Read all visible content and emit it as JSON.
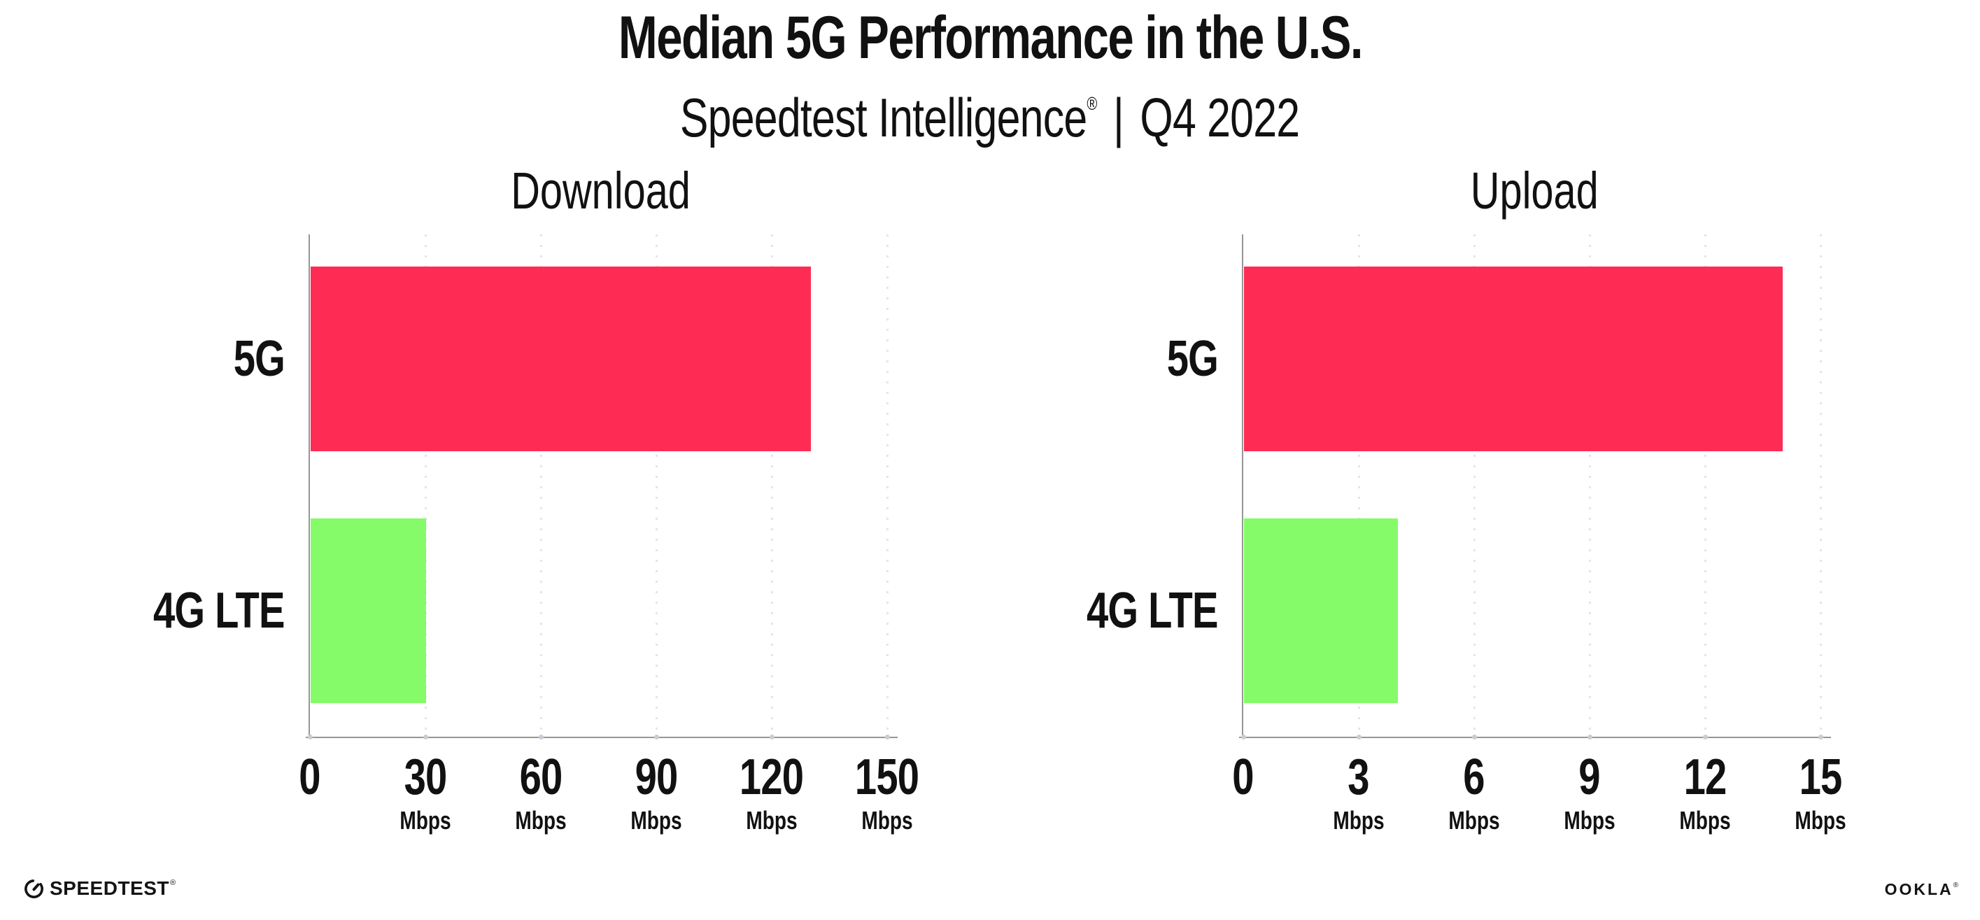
{
  "header": {
    "title": "Median 5G Performance in the U.S.",
    "subtitle_brand": "Speedtest Intelligence",
    "subtitle_reg": "®",
    "subtitle_sep": "|",
    "subtitle_period": "Q4 2022"
  },
  "chart_data": [
    {
      "type": "bar",
      "orientation": "horizontal",
      "title": "Download",
      "categories": [
        "5G",
        "4G LTE"
      ],
      "values": [
        130,
        30
      ],
      "unit": "Mbps",
      "xlim": [
        0,
        150
      ],
      "xticks": [
        0,
        30,
        60,
        90,
        120,
        150
      ],
      "bar_colors": [
        "#FE2C55",
        "#85FB6A"
      ],
      "grid": "vertical-dotted",
      "legend": "none"
    },
    {
      "type": "bar",
      "orientation": "horizontal",
      "title": "Upload",
      "categories": [
        "5G",
        "4G LTE"
      ],
      "values": [
        14,
        4
      ],
      "unit": "Mbps",
      "xlim": [
        0,
        15
      ],
      "xticks": [
        0,
        3,
        6,
        9,
        12,
        15
      ],
      "bar_colors": [
        "#FE2C55",
        "#85FB6A"
      ],
      "grid": "vertical-dotted",
      "legend": "none"
    }
  ],
  "footer": {
    "speedtest_logo_text": "SPEEDTEST",
    "speedtest_reg": "®",
    "ookla_logo_text": "OOKLA",
    "ookla_reg": "®"
  },
  "colors": {
    "bar_5g": "#FE2C55",
    "bar_4g_lte": "#85FB6A",
    "axis": "#969696",
    "gridline": "#E4E4EE",
    "tick_dot": "#CACCD6",
    "text": "#111111",
    "background": "#FFFFFF"
  }
}
